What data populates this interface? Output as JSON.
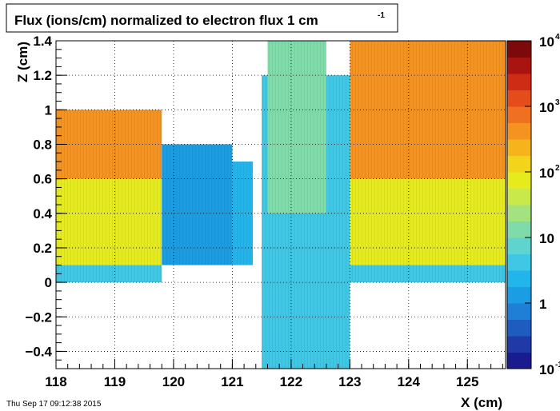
{
  "chart_data": {
    "type": "heatmap",
    "title": "Flux (ions/cm) normalized to electron flux 1 cm",
    "title_superscript": "-1",
    "xlabel": "X (cm)",
    "ylabel": "Z (cm)",
    "xlim": [
      118.0,
      125.65
    ],
    "ylim": [
      -0.5,
      1.4
    ],
    "x_ticks": [
      {
        "v": 118,
        "label": "118"
      },
      {
        "v": 119,
        "label": "119"
      },
      {
        "v": 120,
        "label": "120"
      },
      {
        "v": 121,
        "label": "121"
      },
      {
        "v": 122,
        "label": "122"
      },
      {
        "v": 123,
        "label": "123"
      },
      {
        "v": 124,
        "label": "124"
      },
      {
        "v": 125,
        "label": "125"
      }
    ],
    "y_ticks": [
      {
        "v": -0.4,
        "label": "−0.4"
      },
      {
        "v": -0.2,
        "label": "−0.2"
      },
      {
        "v": 0,
        "label": "0"
      },
      {
        "v": 0.2,
        "label": "0.2"
      },
      {
        "v": 0.4,
        "label": "0.4"
      },
      {
        "v": 0.6,
        "label": "0.6"
      },
      {
        "v": 0.8,
        "label": "0.8"
      },
      {
        "v": 1.0,
        "label": "1"
      },
      {
        "v": 1.2,
        "label": "1.2"
      },
      {
        "v": 1.4,
        "label": "1.4"
      }
    ],
    "colorbar": {
      "scale": "log",
      "labels": [
        {
          "frac": 0.0,
          "text": "10",
          "sup": "-1"
        },
        {
          "frac": 0.2,
          "text": "1",
          "sup": ""
        },
        {
          "frac": 0.4,
          "text": "10",
          "sup": ""
        },
        {
          "frac": 0.6,
          "text": "10",
          "sup": "2"
        },
        {
          "frac": 0.8,
          "text": "10",
          "sup": "3"
        },
        {
          "frac": 1.0,
          "text": "10",
          "sup": "4"
        }
      ],
      "palette": [
        "#1a1b8e",
        "#1f3aa6",
        "#1f5cc0",
        "#1f7fd6",
        "#1b9de4",
        "#22b5ec",
        "#3ec8e6",
        "#5fd4cc",
        "#7fdcaa",
        "#a3e27e",
        "#c9e84a",
        "#e6eb1e",
        "#f2d41a",
        "#f6b41c",
        "#f49320",
        "#ef7020",
        "#e44c1c",
        "#cf2c16",
        "#a81510",
        "#7c0a0a"
      ],
      "approx_levels": 20
    },
    "regions": [
      {
        "x": [
          118.0,
          119.8
        ],
        "z": [
          0.6,
          1.0
        ],
        "level": 14
      },
      {
        "x": [
          118.0,
          119.8
        ],
        "z": [
          0.1,
          0.6
        ],
        "level": 11
      },
      {
        "x": [
          118.0,
          119.8
        ],
        "z": [
          0.0,
          0.1
        ],
        "level": 6
      },
      {
        "x": [
          119.8,
          121.0
        ],
        "z": [
          0.1,
          0.8
        ],
        "level": 4
      },
      {
        "x": [
          121.0,
          121.35
        ],
        "z": [
          0.1,
          0.7
        ],
        "level": 5
      },
      {
        "x": [
          121.5,
          123.0
        ],
        "z": [
          -0.5,
          1.2
        ],
        "level": 6
      },
      {
        "x": [
          121.6,
          122.6
        ],
        "z": [
          0.4,
          1.4
        ],
        "level": 8
      },
      {
        "x": [
          123.0,
          125.65
        ],
        "z": [
          0.6,
          1.4
        ],
        "level": 14
      },
      {
        "x": [
          123.0,
          125.65
        ],
        "z": [
          0.1,
          0.6
        ],
        "level": 11
      },
      {
        "x": [
          123.0,
          125.65
        ],
        "z": [
          0.0,
          0.1
        ],
        "level": 6
      }
    ]
  },
  "footer": {
    "timestamp": "Thu Sep 17 09:12:38 2015"
  }
}
